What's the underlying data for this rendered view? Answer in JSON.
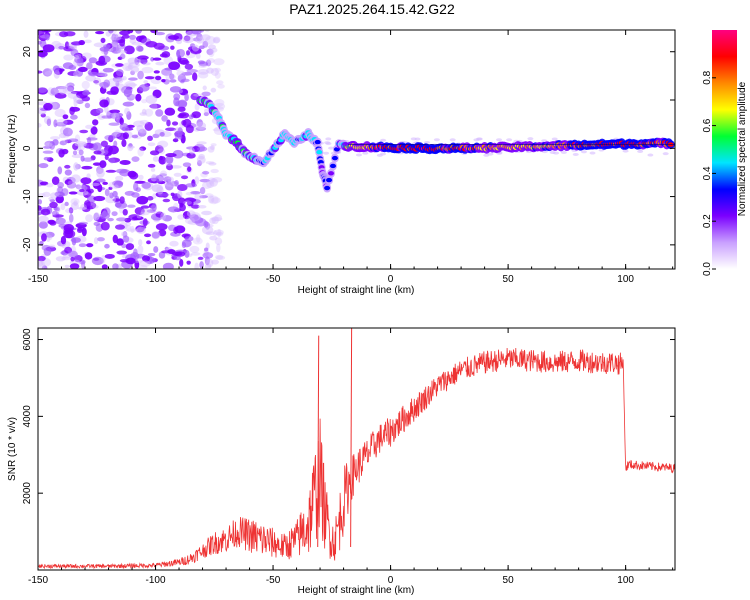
{
  "title": "PAZ1.2025.264.15.42.G22",
  "chart_data": [
    {
      "type": "heatmap",
      "name": "spectrogram",
      "xlabel": "Height of straight line (km)",
      "ylabel": "Frequency (Hz)",
      "xlim": [
        -150,
        121
      ],
      "ylim": [
        -25,
        24.5
      ],
      "xticks": [
        -150,
        -100,
        -50,
        0,
        50,
        100
      ],
      "yticks": [
        -20,
        -10,
        0,
        10,
        20
      ],
      "colorbar": {
        "label": "Normalized spectral amplitude",
        "range": [
          0,
          1
        ],
        "ticks": [
          "0.0",
          "0.2",
          "0.4",
          "0.6",
          "0.8"
        ],
        "tick_values": [
          0,
          0.2,
          0.4,
          0.6,
          0.8
        ],
        "colors": [
          "#ffffff",
          "#c9a0ff",
          "#7b00ff",
          "#0000ff",
          "#00e5ff",
          "#00ff33",
          "#ffff00",
          "#ff8800",
          "#ff0000",
          "#ff0080"
        ]
      },
      "tone_track": [
        {
          "x": -81,
          "y": 10,
          "a": 0.55
        },
        {
          "x": -77,
          "y": 9,
          "a": 0.5
        },
        {
          "x": -73,
          "y": 6,
          "a": 0.45
        },
        {
          "x": -70,
          "y": 3,
          "a": 0.5
        },
        {
          "x": -65,
          "y": 1,
          "a": 0.55
        },
        {
          "x": -62,
          "y": -1,
          "a": 0.5
        },
        {
          "x": -58,
          "y": -2,
          "a": 0.45
        },
        {
          "x": -54,
          "y": -3,
          "a": 0.35
        },
        {
          "x": -45,
          "y": 3,
          "a": 0.45
        },
        {
          "x": -41,
          "y": 1,
          "a": 0.4
        },
        {
          "x": -35,
          "y": 3,
          "a": 0.45
        },
        {
          "x": -31,
          "y": 1,
          "a": 0.4
        },
        {
          "x": -29,
          "y": -5,
          "a": 0.3
        },
        {
          "x": -27,
          "y": -8,
          "a": 0.3
        },
        {
          "x": -22,
          "y": 1,
          "a": 0.4
        },
        {
          "x": -18,
          "y": 0.5,
          "a": 0.55
        },
        {
          "x": -10,
          "y": 0.3,
          "a": 0.75
        },
        {
          "x": 0,
          "y": 0.2,
          "a": 0.85
        },
        {
          "x": 15,
          "y": 0,
          "a": 0.9
        },
        {
          "x": 30,
          "y": 0,
          "a": 0.8
        },
        {
          "x": 50,
          "y": 0.2,
          "a": 0.7
        },
        {
          "x": 70,
          "y": 0.5,
          "a": 0.75
        },
        {
          "x": 90,
          "y": 0.8,
          "a": 0.9
        },
        {
          "x": 110,
          "y": 1,
          "a": 0.85
        },
        {
          "x": 120,
          "y": 1,
          "a": 0.8
        }
      ],
      "noise_region_x": [
        -150,
        -72
      ]
    },
    {
      "type": "line",
      "name": "snr",
      "xlabel": "Height of straight line (km)",
      "ylabel": "SNR (10 * v/v)",
      "xlim": [
        -150,
        121
      ],
      "ylim": [
        0,
        6300
      ],
      "xticks": [
        -150,
        -100,
        -50,
        0,
        50,
        100
      ],
      "yticks": [
        2000,
        4000,
        6000
      ],
      "color": "#ee3333",
      "series": [
        {
          "name": "SNR envelope",
          "x": [
            -150,
            -120,
            -100,
            -90,
            -85,
            -80,
            -75,
            -70,
            -65,
            -60,
            -55,
            -50,
            -45,
            -40,
            -35,
            -32,
            -30,
            -28,
            -26,
            -24,
            -22,
            -20,
            -18,
            -15,
            -10,
            -5,
            0,
            10,
            20,
            30,
            40,
            50,
            60,
            70,
            80,
            90,
            95,
            99,
            100,
            101,
            110,
            121
          ],
          "y": [
            100,
            100,
            120,
            200,
            300,
            500,
            700,
            800,
            1000,
            900,
            800,
            700,
            600,
            800,
            1200,
            2000,
            2500,
            1500,
            1000,
            700,
            1200,
            1800,
            2200,
            2600,
            3000,
            3400,
            3600,
            4200,
            4800,
            5200,
            5400,
            5500,
            5450,
            5400,
            5450,
            5400,
            5400,
            5350,
            2600,
            2750,
            2700,
            2650
          ],
          "noise": [
            50,
            50,
            60,
            100,
            150,
            200,
            300,
            350,
            400,
            450,
            500,
            400,
            350,
            500,
            900,
            1300,
            1500,
            1000,
            700,
            500,
            800,
            900,
            700,
            500,
            450,
            400,
            400,
            350,
            300,
            300,
            300,
            300,
            300,
            300,
            300,
            300,
            300,
            300,
            120,
            120,
            120,
            120
          ]
        }
      ],
      "annotations": [
        {
          "x": -31,
          "y": 6100,
          "label": "spike"
        },
        {
          "x": -17,
          "y": 6300,
          "label": "spike"
        }
      ]
    }
  ]
}
